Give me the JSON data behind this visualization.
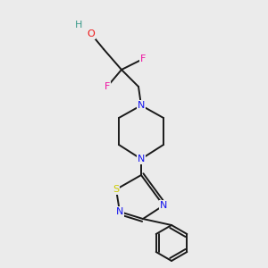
{
  "background_color": "#ebebeb",
  "bond_color": "#1a1a1a",
  "atom_colors": {
    "H": "#3a9b8a",
    "O": "#ee1111",
    "F": "#ee10a0",
    "N": "#1111ee",
    "S": "#cccc00",
    "C": "#1a1a1a"
  },
  "figsize": [
    3.0,
    3.0
  ],
  "dpi": 100,
  "lw": 1.4
}
